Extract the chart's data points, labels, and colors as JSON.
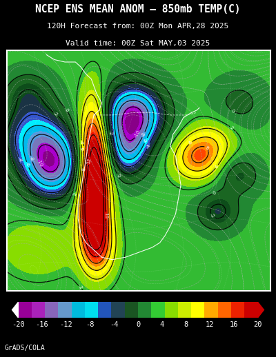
{
  "title_line1": "NCEP ENS MEAN ANOM – 850mb TEMP(C)",
  "title_line2": "120H Forecast from: 00Z Mon APR,28 2025",
  "title_line3": "Valid time: 00Z Sat MAY,03 2025",
  "background_color": "#000000",
  "credit_text": "GrADS/COLA",
  "figsize": [
    4.0,
    5.18
  ],
  "dpi": 100,
  "cbar_colors": [
    "#990099",
    "#aa00aa",
    "#8866bb",
    "#6688cc",
    "#00bbdd",
    "#00ddee",
    "#4466cc",
    "#224455",
    "#116622",
    "#228833",
    "#33aa33",
    "#66cc00",
    "#aadd00",
    "#ffff00",
    "#ffcc00",
    "#ff8800",
    "#ff5500",
    "#ff2200",
    "#cc0000"
  ],
  "cbar_tick_labels": [
    "-20",
    "-16",
    "-12",
    "-8",
    "-4",
    "0",
    "4",
    "8",
    "12",
    "16",
    "20"
  ],
  "map_colors": [
    "#880088",
    "#aa00cc",
    "#7777bb",
    "#5599dd",
    "#00bbee",
    "#00eeff",
    "#3355cc",
    "#1a3344",
    "#0d4d1a",
    "#1a6622",
    "#228833",
    "#33bb33",
    "#88dd00",
    "#ddee00",
    "#ffff00",
    "#ffcc00",
    "#ff8800",
    "#ff4400",
    "#ee1100",
    "#cc0000"
  ]
}
